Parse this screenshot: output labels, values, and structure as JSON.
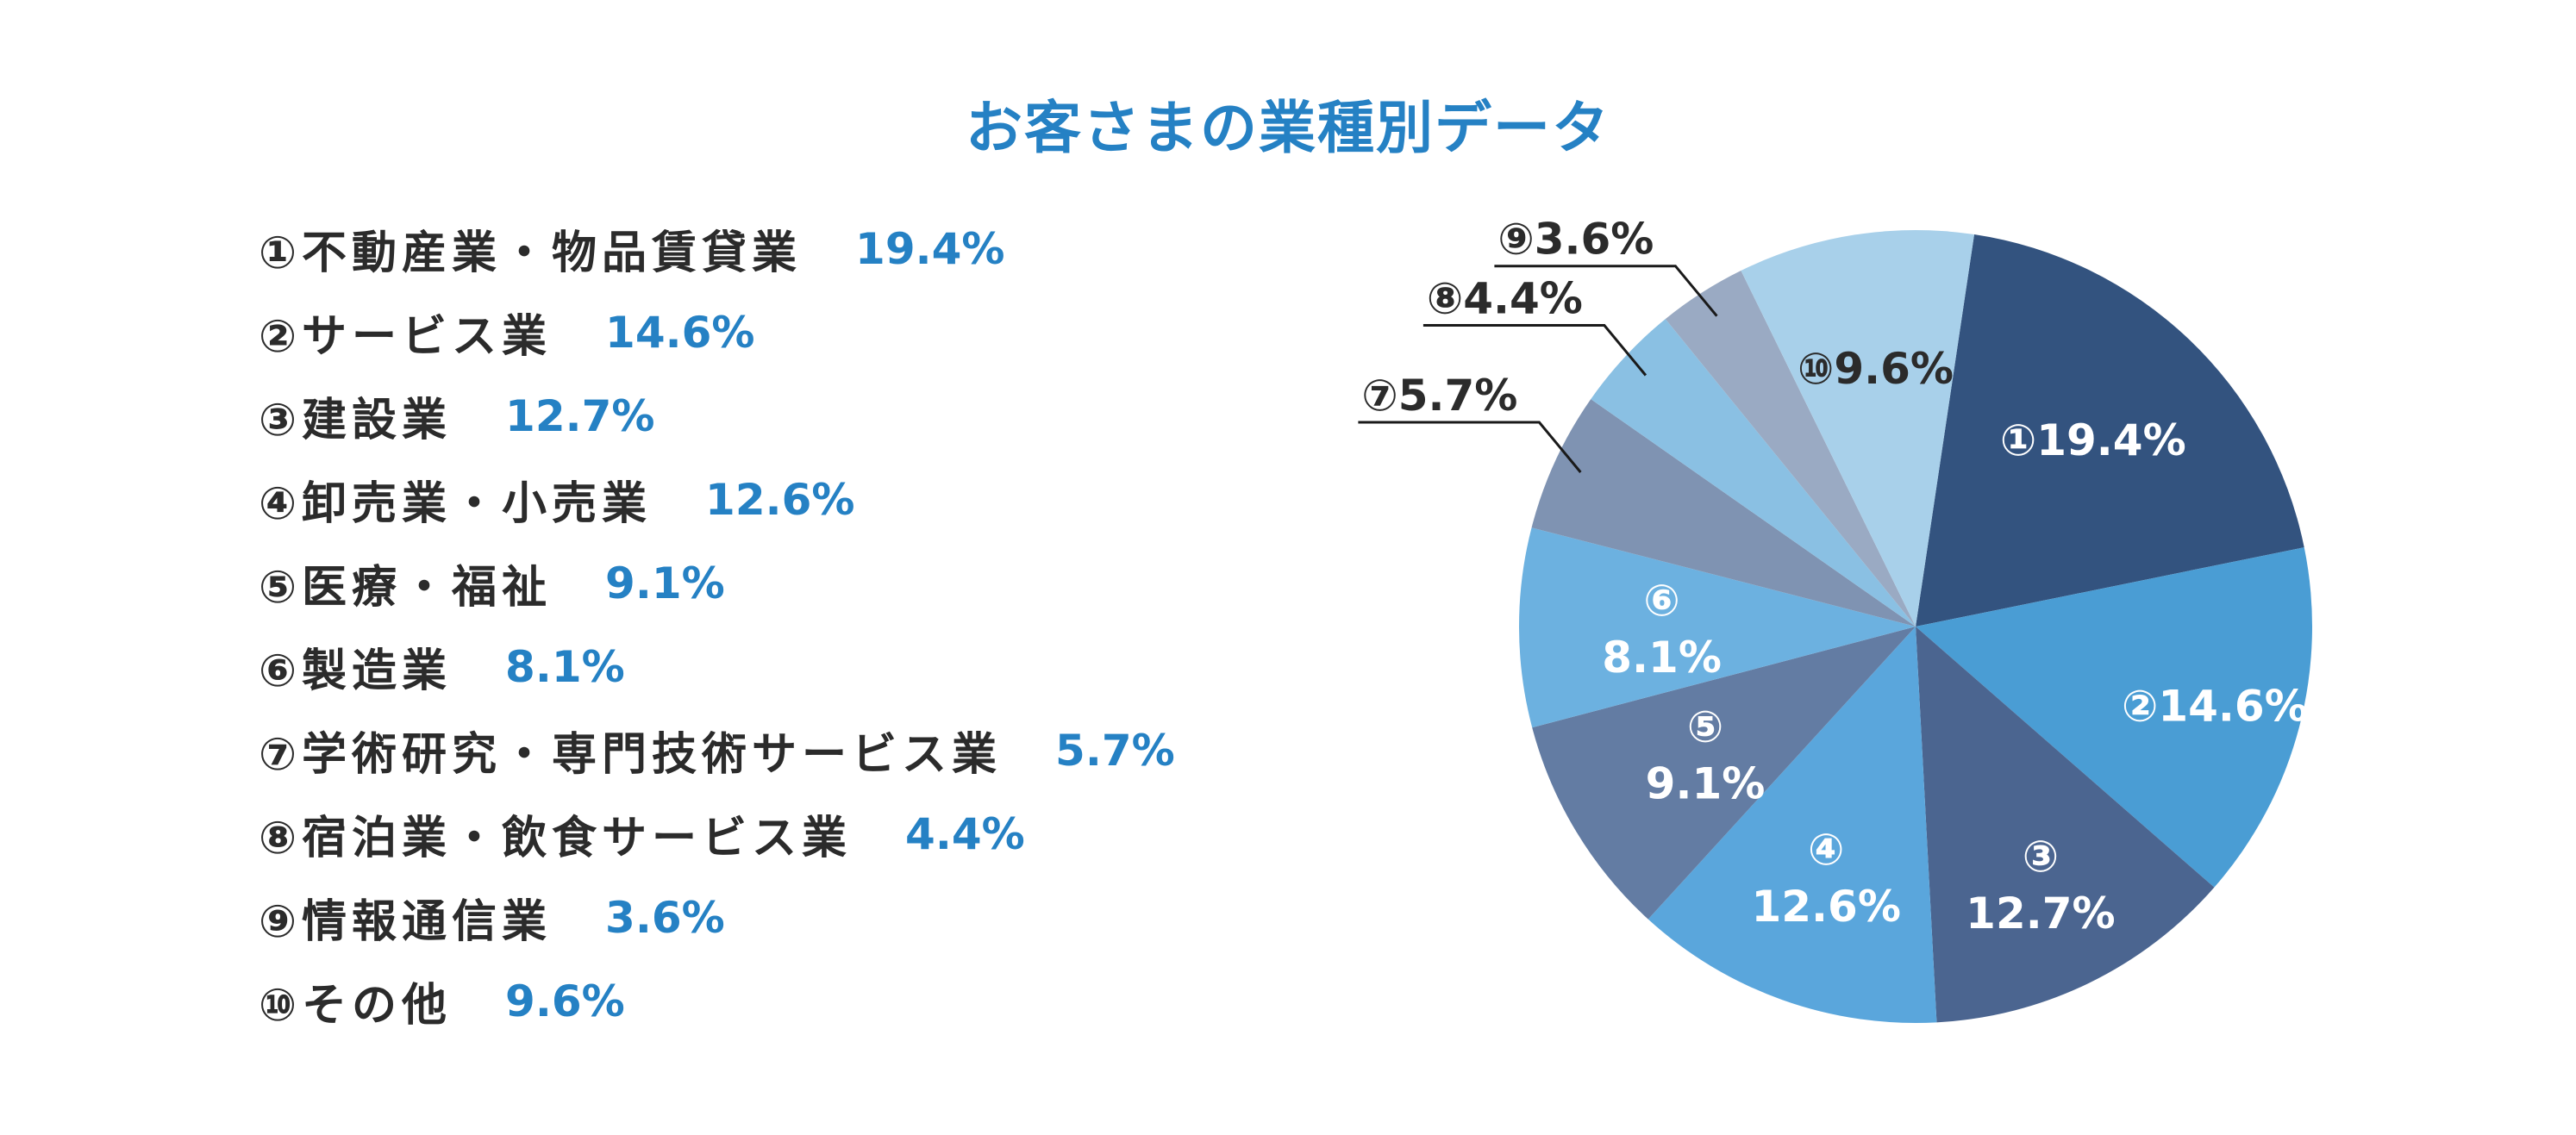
{
  "chart_data": {
    "type": "pie",
    "title": "お客さまの業種別データ",
    "slices": [
      {
        "marker": "①",
        "name": "不動産業・物品賃貸業",
        "value": 19.4,
        "value_label": "19.4%",
        "color": "#33537f"
      },
      {
        "marker": "②",
        "name": "サービス業",
        "value": 14.6,
        "value_label": "14.6%",
        "color": "#4a9dd4"
      },
      {
        "marker": "③",
        "name": "建設業",
        "value": 12.7,
        "value_label": "12.7%",
        "color": "#4b6590"
      },
      {
        "marker": "④",
        "name": "卸売業・小売業",
        "value": 12.6,
        "value_label": "12.6%",
        "color": "#5aa6dc"
      },
      {
        "marker": "⑤",
        "name": "医療・福祉",
        "value": 9.1,
        "value_label": "9.1%",
        "color": "#637ca3"
      },
      {
        "marker": "⑥",
        "name": "製造業",
        "value": 8.1,
        "value_label": "8.1%",
        "color": "#6cb1e0"
      },
      {
        "marker": "⑦",
        "name": "学術研究・専門技術サービス業",
        "value": 5.7,
        "value_label": "5.7%",
        "color": "#7f93b2"
      },
      {
        "marker": "⑧",
        "name": "宿泊業・飲食サービス業",
        "value": 4.4,
        "value_label": "4.4%",
        "color": "#8ac0e3"
      },
      {
        "marker": "⑨",
        "name": "情報通信業",
        "value": 3.6,
        "value_label": "3.6%",
        "color": "#9aaac3"
      },
      {
        "marker": "⑩",
        "name": "その他",
        "value": 9.6,
        "value_label": "9.6%",
        "color": "#a8d0ea"
      }
    ]
  }
}
